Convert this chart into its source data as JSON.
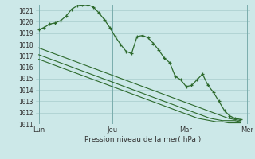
{
  "xlabel": "Pression niveau de la mer( hPa )",
  "ylim": [
    1011,
    1021.5
  ],
  "yticks": [
    1011,
    1012,
    1013,
    1014,
    1015,
    1016,
    1017,
    1018,
    1019,
    1020,
    1021
  ],
  "bg_color": "#cce8e8",
  "line_color": "#2d6a2d",
  "grid_color": "#a8cccc",
  "vline_color": "#7aadad",
  "xtick_labels": [
    "Lun",
    "Jeu",
    "Mar",
    "Mer"
  ],
  "xtick_positions": [
    0,
    12,
    24,
    34
  ],
  "series1": [
    1019.3,
    1019.5,
    1019.8,
    1019.9,
    1020.1,
    1020.5,
    1021.1,
    1021.4,
    1021.5,
    1021.5,
    1021.3,
    1020.8,
    1020.2,
    1019.5,
    1018.7,
    1018.0,
    1017.4,
    1017.2,
    1018.7,
    1018.8,
    1018.6,
    1018.1,
    1017.5,
    1016.8,
    1016.4,
    1015.2,
    1014.9,
    1014.3,
    1014.4,
    1014.9,
    1015.4,
    1014.4,
    1013.8,
    1013.0,
    1012.2,
    1011.7,
    1011.5,
    1011.4
  ],
  "series2": [
    1017.7,
    1017.5,
    1017.3,
    1017.1,
    1016.9,
    1016.7,
    1016.5,
    1016.3,
    1016.1,
    1015.9,
    1015.7,
    1015.5,
    1015.3,
    1015.1,
    1014.9,
    1014.7,
    1014.5,
    1014.3,
    1014.1,
    1013.9,
    1013.7,
    1013.5,
    1013.3,
    1013.1,
    1012.9,
    1012.7,
    1012.5,
    1012.3,
    1012.1,
    1011.9,
    1011.7,
    1011.5,
    1011.4,
    1011.3
  ],
  "series3": [
    1017.1,
    1016.9,
    1016.7,
    1016.5,
    1016.3,
    1016.1,
    1015.9,
    1015.7,
    1015.5,
    1015.3,
    1015.1,
    1014.9,
    1014.7,
    1014.5,
    1014.3,
    1014.1,
    1013.9,
    1013.7,
    1013.5,
    1013.3,
    1013.1,
    1012.9,
    1012.7,
    1012.5,
    1012.3,
    1012.1,
    1011.9,
    1011.7,
    1011.5,
    1011.4,
    1011.3,
    1011.3,
    1011.3,
    1011.2
  ],
  "series4": [
    1016.7,
    1016.5,
    1016.3,
    1016.1,
    1015.9,
    1015.7,
    1015.5,
    1015.3,
    1015.1,
    1014.9,
    1014.7,
    1014.5,
    1014.3,
    1014.1,
    1013.9,
    1013.7,
    1013.5,
    1013.3,
    1013.1,
    1012.9,
    1012.7,
    1012.5,
    1012.3,
    1012.1,
    1011.9,
    1011.7,
    1011.5,
    1011.4,
    1011.3,
    1011.2,
    1011.2,
    1011.1,
    1011.1,
    1011.1
  ],
  "n_lin": 34
}
